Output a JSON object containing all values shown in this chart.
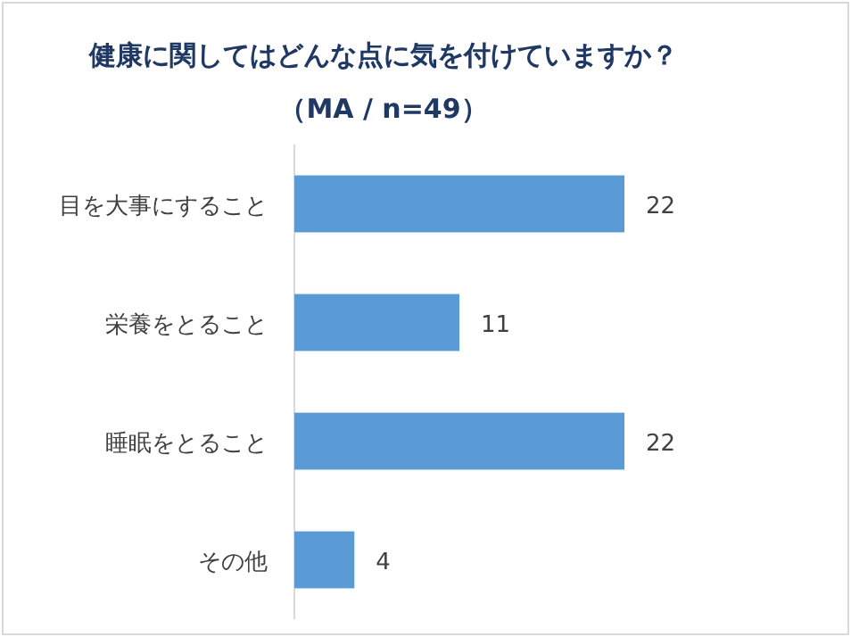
{
  "chart_data": {
    "type": "bar",
    "orientation": "horizontal",
    "title": "健康に関してはどんな点に気を付けていますか？",
    "subtitle": "（MA / n=49）",
    "categories": [
      "目を大事にすること",
      "栄養をとること",
      "睡眠をとること",
      "その他"
    ],
    "values": [
      22,
      11,
      22,
      4
    ],
    "color": "#5b9bd5",
    "data_labels": true
  }
}
